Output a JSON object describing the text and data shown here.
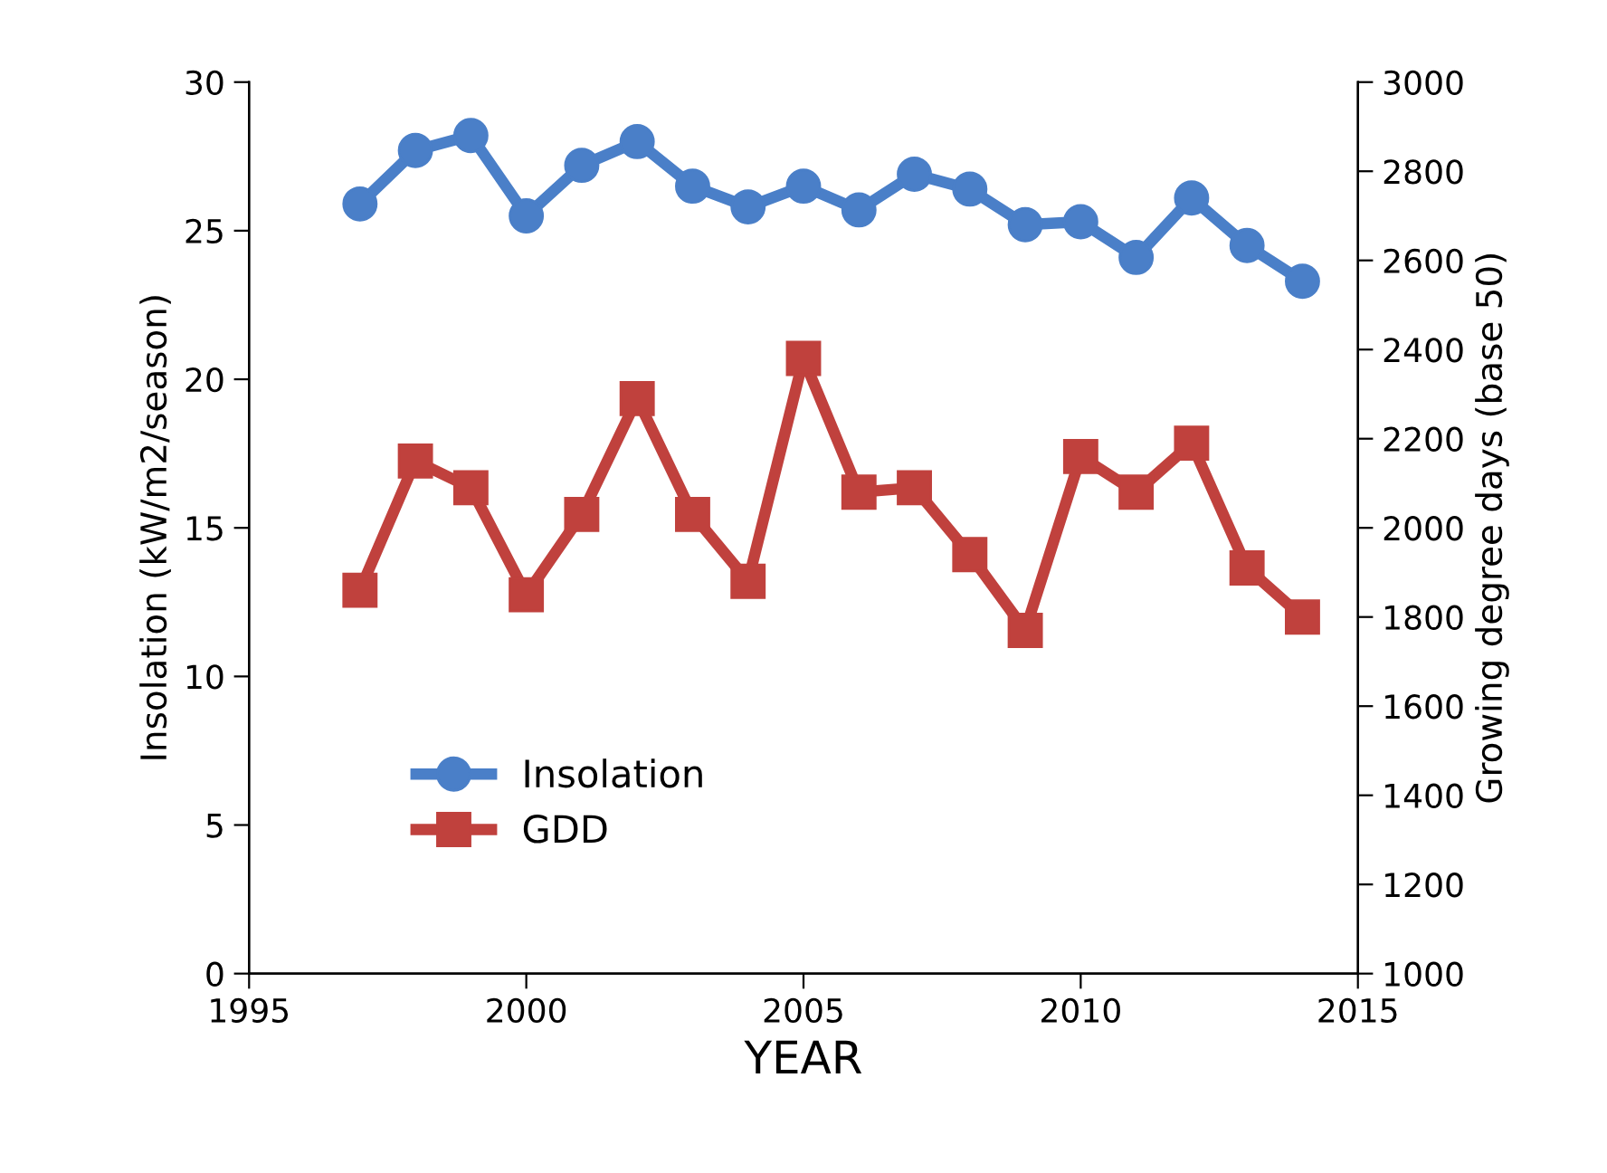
{
  "chart_data": {
    "type": "line",
    "xlabel": "YEAR",
    "ylabel": "Insolation (kW/m2/season)",
    "y2label": "Growing degree days (base 50)",
    "x": [
      1997,
      1998,
      1999,
      2000,
      2001,
      2002,
      2003,
      2004,
      2005,
      2006,
      2007,
      2008,
      2009,
      2010,
      2011,
      2012,
      2013,
      2014
    ],
    "series": [
      {
        "name": "Insolation",
        "color": "#4a7fc8",
        "marker": "circle",
        "values": [
          25.9,
          27.7,
          28.2,
          25.5,
          27.2,
          28.0,
          26.5,
          25.8,
          26.5,
          25.7,
          26.9,
          26.4,
          25.2,
          25.3,
          24.1,
          26.1,
          24.5,
          23.3
        ]
      },
      {
        "name": "GDD",
        "color": "#c0413d",
        "marker": "square",
        "axis": "y2",
        "values": [
          1860,
          2150,
          2090,
          1850,
          2030,
          2290,
          2030,
          1880,
          2380,
          2080,
          2090,
          1940,
          1770,
          2160,
          2080,
          2190,
          1910,
          1800
        ]
      }
    ],
    "xlim": [
      1995,
      2015
    ],
    "xticks": [
      1995,
      2000,
      2005,
      2010,
      2015
    ],
    "ylim": [
      0,
      30
    ],
    "yticks": [
      0,
      5,
      10,
      15,
      20,
      25,
      30
    ],
    "y2lim": [
      1000,
      3000
    ],
    "y2ticks": [
      1000,
      1200,
      1400,
      1600,
      1800,
      2000,
      2200,
      2400,
      2600,
      2800,
      3000
    ],
    "grid": false,
    "legend": "lower left"
  }
}
